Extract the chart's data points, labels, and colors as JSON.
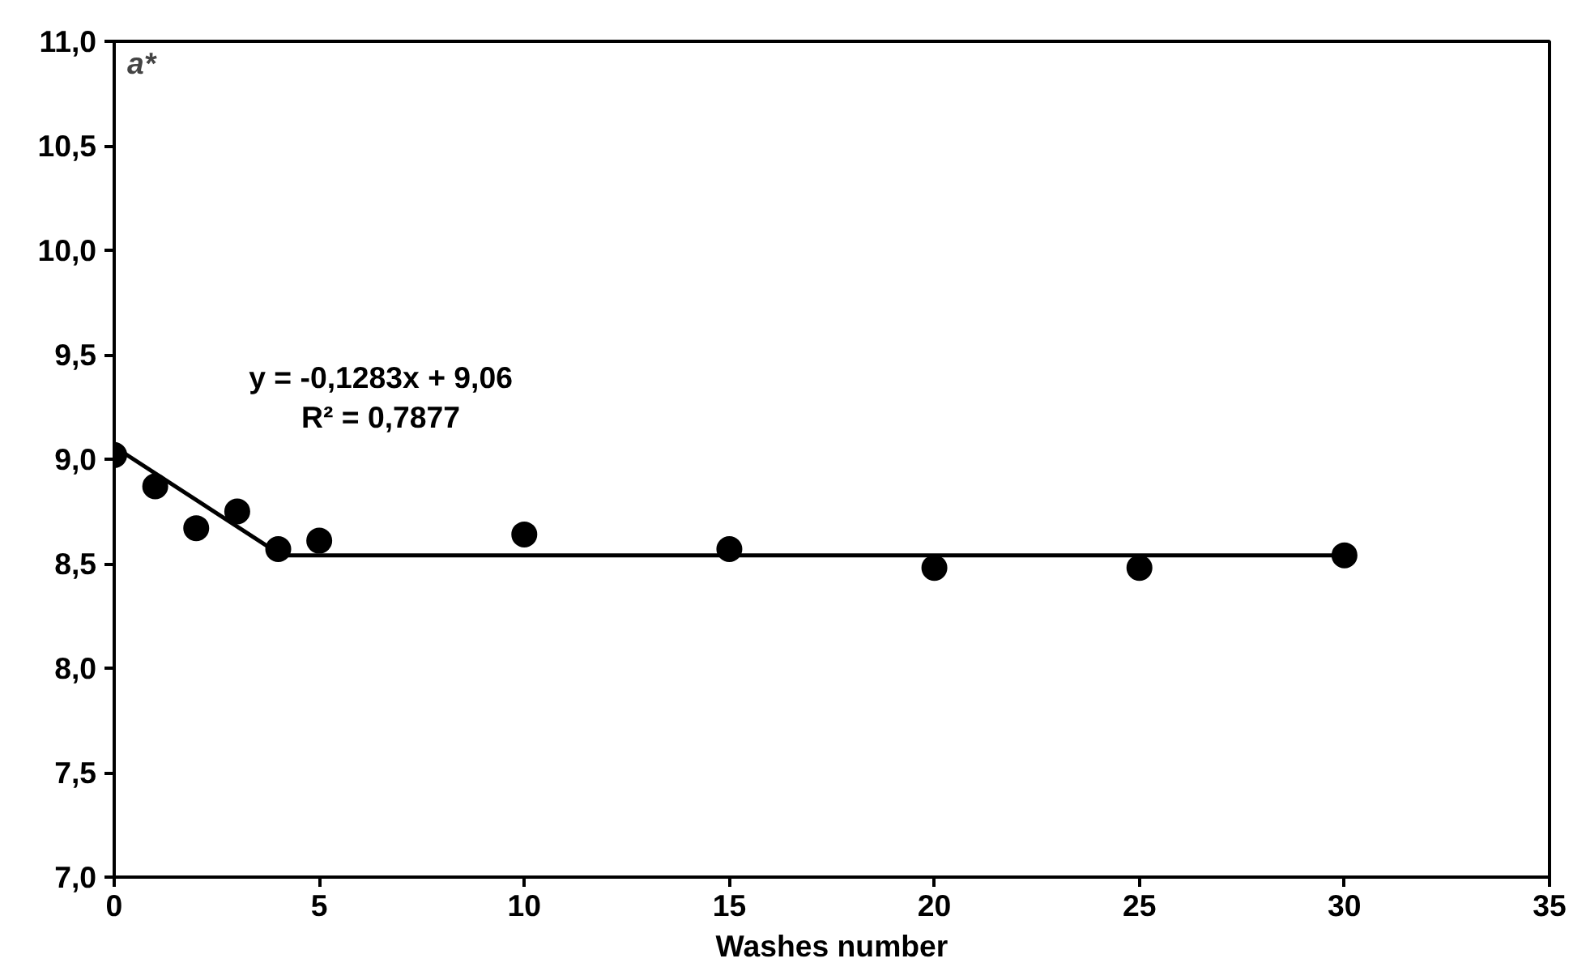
{
  "chart_data": {
    "type": "scatter",
    "xlabel": "Washes number",
    "ylabel": "a*",
    "series": [
      {
        "marker": "circle",
        "color": "#000000",
        "x": [
          0,
          1,
          2,
          3,
          4,
          5,
          10,
          15,
          20,
          25,
          30
        ],
        "values": [
          9.02,
          8.87,
          8.67,
          8.75,
          8.57,
          8.61,
          8.64,
          8.57,
          8.48,
          8.48,
          8.54
        ]
      },
      {
        "type": "line",
        "color": "#000000",
        "x": [
          0,
          4
        ],
        "values": [
          9.06,
          8.55
        ]
      },
      {
        "type": "line",
        "color": "#000000",
        "x": [
          4,
          30
        ],
        "values": [
          8.54,
          8.54
        ]
      }
    ],
    "annotations": [
      "y = -0,1283x + 9,06",
      "R² = 0,7877"
    ],
    "xlim": [
      0,
      35
    ],
    "xticks": [
      0,
      5,
      10,
      15,
      20,
      25,
      30,
      35
    ],
    "ylim": [
      7.0,
      11.0
    ],
    "yticks": [
      {
        "value": 7.0,
        "label": "7,0"
      },
      {
        "value": 7.5,
        "label": "7,5"
      },
      {
        "value": 8.0,
        "label": "8,0"
      },
      {
        "value": 8.5,
        "label": "8,5"
      },
      {
        "value": 9.0,
        "label": "9,0"
      },
      {
        "value": 9.5,
        "label": "9,5"
      },
      {
        "value": 10.0,
        "label": "10,0"
      },
      {
        "value": 10.5,
        "label": "10,5"
      },
      {
        "value": 11.0,
        "label": "11,0"
      }
    ],
    "grid": false,
    "line_style": "solid"
  }
}
